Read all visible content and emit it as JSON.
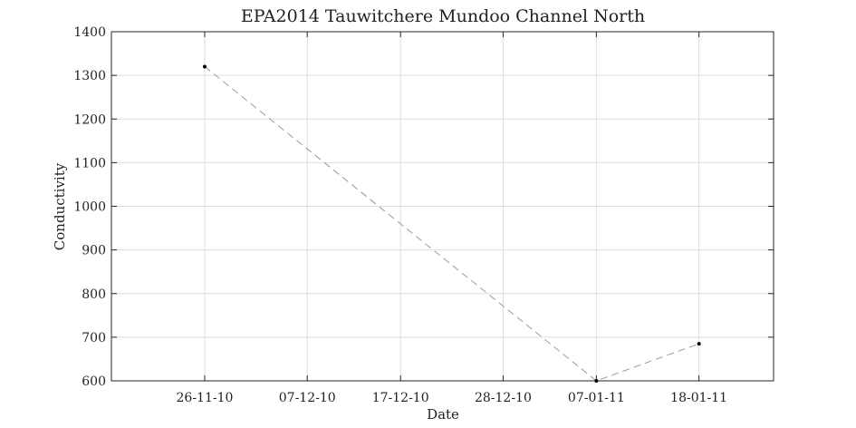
{
  "chart_data": {
    "type": "line",
    "title": "EPA2014 Tauwitchere Mundoo Channel North",
    "xlabel": "Date",
    "ylabel": "Conductivity",
    "ylim": [
      600,
      1400
    ],
    "xlim": [
      "2010-11-16",
      "2011-01-26"
    ],
    "grid": true,
    "yticks": [
      600,
      700,
      800,
      900,
      1000,
      1100,
      1200,
      1300,
      1400
    ],
    "xticks": [
      {
        "date": "2010-11-26",
        "label": "26-11-10"
      },
      {
        "date": "2010-12-07",
        "label": "07-12-10"
      },
      {
        "date": "2010-12-17",
        "label": "17-12-10"
      },
      {
        "date": "2010-12-28",
        "label": "28-12-10"
      },
      {
        "date": "2011-01-07",
        "label": "07-01-11"
      },
      {
        "date": "2011-01-18",
        "label": "18-01-11"
      }
    ],
    "series": [
      {
        "x": [
          "2010-11-26",
          "2011-01-07",
          "2011-01-18"
        ],
        "y": [
          1320,
          600,
          685
        ],
        "line_style": "dashed",
        "line_color": "#999999",
        "marker_color": "#000000"
      }
    ]
  }
}
